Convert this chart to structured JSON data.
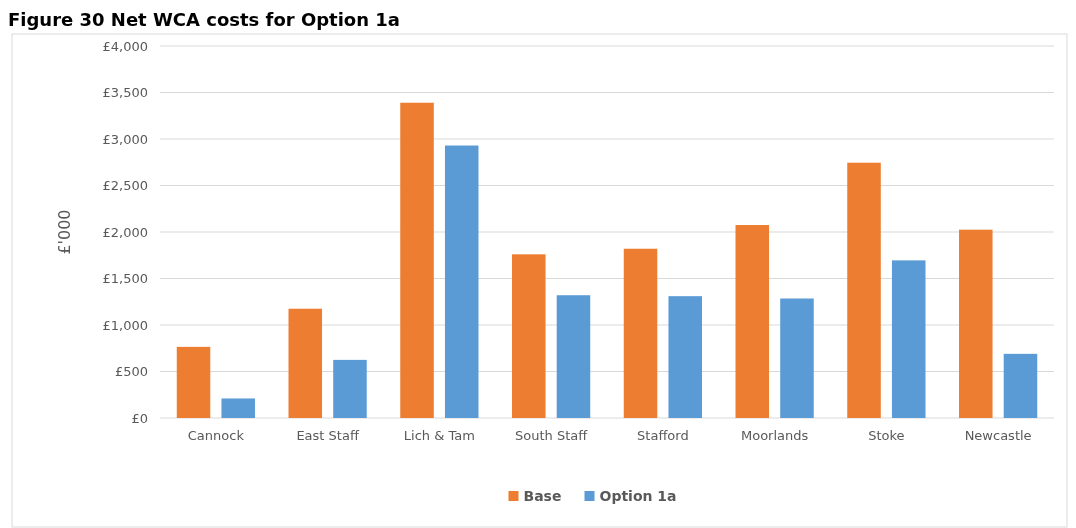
{
  "chart_data": {
    "type": "bar",
    "title": "Figure 30 Net WCA costs for Option 1a",
    "ylabel": "£'000",
    "categories": [
      "Cannock",
      "East Staff",
      "Lich & Tam",
      "South Staff",
      "Stafford",
      "Moorlands",
      "Stoke",
      "Newcastle"
    ],
    "series": [
      {
        "name": "Base",
        "color": "#ed7d31",
        "values": [
          765,
          1175,
          3390,
          1760,
          1820,
          2075,
          2745,
          2025
        ]
      },
      {
        "name": "Option 1a",
        "color": "#5b9bd5",
        "values": [
          210,
          625,
          2930,
          1320,
          1310,
          1285,
          1695,
          690
        ]
      }
    ],
    "ylim": [
      0,
      4000
    ],
    "yticks": [
      {
        "value": 0,
        "label": "£0"
      },
      {
        "value": 500,
        "label": "£500"
      },
      {
        "value": 1000,
        "label": "£1,000"
      },
      {
        "value": 1500,
        "label": "£1,500"
      },
      {
        "value": 2000,
        "label": "£2,000"
      },
      {
        "value": 2500,
        "label": "£2,500"
      },
      {
        "value": 3000,
        "label": "£3,000"
      },
      {
        "value": 3500,
        "label": "£3,500"
      },
      {
        "value": 4000,
        "label": "£4,000"
      }
    ],
    "grid": "y",
    "legend": "bottom"
  }
}
